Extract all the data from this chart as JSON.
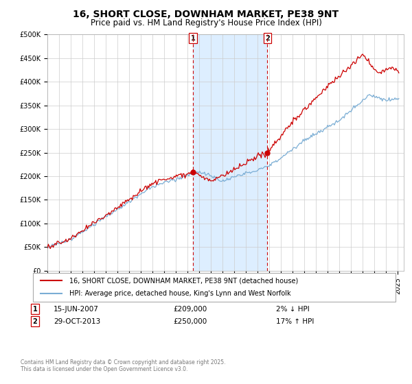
{
  "title": "16, SHORT CLOSE, DOWNHAM MARKET, PE38 9NT",
  "subtitle": "Price paid vs. HM Land Registry's House Price Index (HPI)",
  "ylabel_ticks": [
    "£0",
    "£50K",
    "£100K",
    "£150K",
    "£200K",
    "£250K",
    "£300K",
    "£350K",
    "£400K",
    "£450K",
    "£500K"
  ],
  "ytick_values": [
    0,
    50000,
    100000,
    150000,
    200000,
    250000,
    300000,
    350000,
    400000,
    450000,
    500000
  ],
  "ylim": [
    0,
    500000
  ],
  "xlim_start": 1995.0,
  "xlim_end": 2025.5,
  "sale1_x": 2007.458,
  "sale1_y": 209000,
  "sale1_label": "1",
  "sale1_date": "15-JUN-2007",
  "sale1_price": "£209,000",
  "sale1_hpi": "2% ↓ HPI",
  "sale2_x": 2013.833,
  "sale2_y": 250000,
  "sale2_label": "2",
  "sale2_date": "29-OCT-2013",
  "sale2_price": "£250,000",
  "sale2_hpi": "17% ↑ HPI",
  "red_color": "#cc0000",
  "blue_color": "#7aadd4",
  "shade_color": "#ddeeff",
  "marker_color": "#cc0000",
  "grid_color": "#cccccc",
  "background_color": "#ffffff",
  "legend_label_red": "16, SHORT CLOSE, DOWNHAM MARKET, PE38 9NT (detached house)",
  "legend_label_blue": "HPI: Average price, detached house, King's Lynn and West Norfolk",
  "footnote": "Contains HM Land Registry data © Crown copyright and database right 2025.\nThis data is licensed under the Open Government Licence v3.0.",
  "title_fontsize": 10,
  "subtitle_fontsize": 8.5,
  "tick_fontsize": 7,
  "legend_fontsize": 7
}
